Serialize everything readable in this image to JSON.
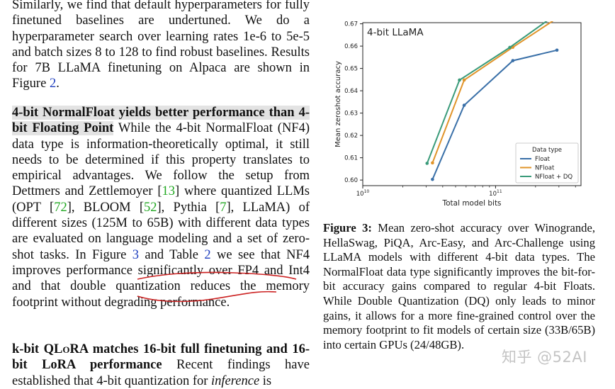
{
  "left": {
    "para1": "Similarly, we find that default hyperparameters for fully finetuned baselines are undertuned. We do a hyperparameter search over learning rates 1e-6 to 5e-5 and batch sizes 8 to 128 to find robust baselines. Results for 7B LLaMA finetuning on Alpaca are shown in Figure",
    "para1_ref": "2",
    "para1_end": ".",
    "para2_heading": "4-bit NormalFloat yields better performance than 4-bit Floating Point",
    "para2_a": " While the 4-bit NormalFloat (NF4) data type is information-theoretically optimal, it still needs to be determined if this property translates to empirical advantages. We follow the setup from Dettmers and Zettlemoyer [",
    "ref13": "13",
    "para2_b": "] where quantized LLMs (OPT [",
    "ref72": "72",
    "para2_c": "], BLOOM [",
    "ref52": "52",
    "para2_d": "], Pythia [",
    "ref7": "7",
    "para2_e": "], LLaMA) of different sizes (125M to 65B) with different data types are evaluated on language modeling and a set of zero-shot tasks. In Figure ",
    "fig3": "3",
    "para2_f": " and Table ",
    "tab2": "2",
    "para2_g": " we see that NF4 improves performance significantly over FP4 and Int4 and that double quantization reduces the memory footprint without degrading performance.",
    "para3_heading_a": "k-bit QL",
    "para3_heading_sc": "o",
    "para3_heading_b": "RA matches 16-bit full finetuning and 16-bit LoRA performance",
    "para3_a": " Recent findings have established that 4-bit quantization for ",
    "para3_em": "inference",
    "para3_b": " is"
  },
  "caption": {
    "label": "Figure 3:",
    "text": " Mean zero-shot accuracy over Winogrande, HellaSwag, PiQA, Arc-Easy, and Arc-Challenge using LLaMA models with different 4-bit data types. The NormalFloat data type significantly improves the bit-for-bit accuracy gains compared to regular 4-bit Floats. While Double Quantization (DQ) only leads to minor gains, it allows for a more fine-grained control over the memory footprint to fit models of certain size (33B/65B) into certain GPUs (24/48GB)."
  },
  "watermark": "知乎 @52AI",
  "chart_data": {
    "type": "line",
    "title": "4-bit LLaMA",
    "xlabel": "Total model bits",
    "ylabel": "Mean zeroshot accuracy",
    "x_scale": "log",
    "xlim": [
      10000000000.0,
      440000000000.0
    ],
    "ylim": [
      0.5975,
      0.6705
    ],
    "x_ticks": [
      {
        "value": 10000000000.0,
        "base": "10",
        "exp": "10"
      },
      {
        "value": 100000000000.0,
        "base": "10",
        "exp": "11"
      }
    ],
    "y_ticks": [
      "0.60",
      "0.61",
      "0.62",
      "0.63",
      "0.64",
      "0.65",
      "0.66",
      "0.67"
    ],
    "legend": {
      "title": "Data type",
      "position": "lower-right"
    },
    "series": [
      {
        "name": "Float",
        "color": "#3a70a8",
        "points": [
          [
            33500000000.0,
            0.6003
          ],
          [
            58000000000.0,
            0.6335
          ],
          [
            135000000000.0,
            0.6535
          ],
          [
            290000000000.0,
            0.6582
          ]
        ]
      },
      {
        "name": "NFloat",
        "color": "#e0942a",
        "points": [
          [
            33500000000.0,
            0.6077
          ],
          [
            58000000000.0,
            0.6448
          ],
          [
            135000000000.0,
            0.6595
          ],
          [
            290000000000.0,
            0.6725
          ]
        ]
      },
      {
        "name": "NFloat + DQ",
        "color": "#3a9b7a",
        "points": [
          [
            30500000000.0,
            0.6075
          ],
          [
            53500000000.0,
            0.6448
          ],
          [
            128000000000.0,
            0.6594
          ],
          [
            270000000000.0,
            0.6732
          ]
        ]
      }
    ]
  }
}
